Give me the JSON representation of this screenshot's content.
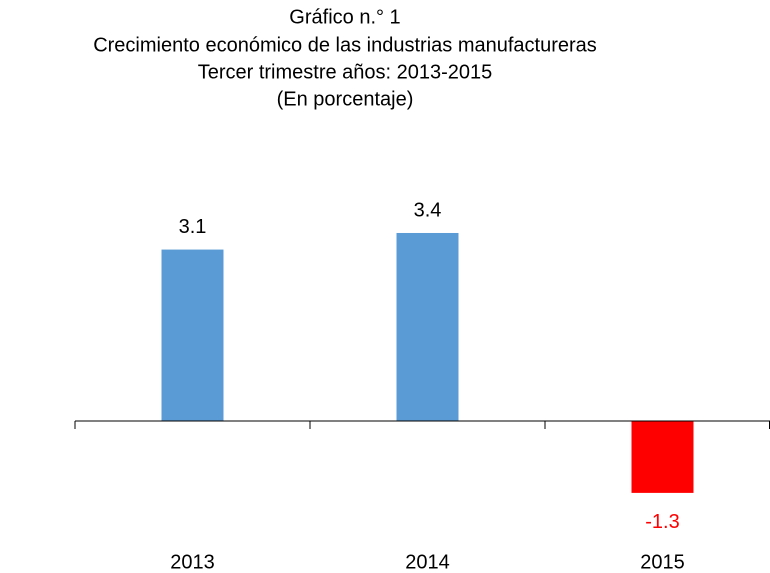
{
  "chart_data": {
    "type": "bar",
    "title": "Gráfico n.° 1",
    "subtitle": [
      "Crecimiento económico de las industrias manufactureras",
      "Tercer trimestre años: 2013-2015",
      "(En porcentaje)"
    ],
    "categories": [
      "2013",
      "2014",
      "2015"
    ],
    "values": [
      3.1,
      3.4,
      -1.3
    ],
    "colors": [
      "#5b9bd5",
      "#5b9bd5",
      "#ff0000"
    ],
    "value_label_colors": [
      "#000000",
      "#000000",
      "#ff0000"
    ]
  }
}
